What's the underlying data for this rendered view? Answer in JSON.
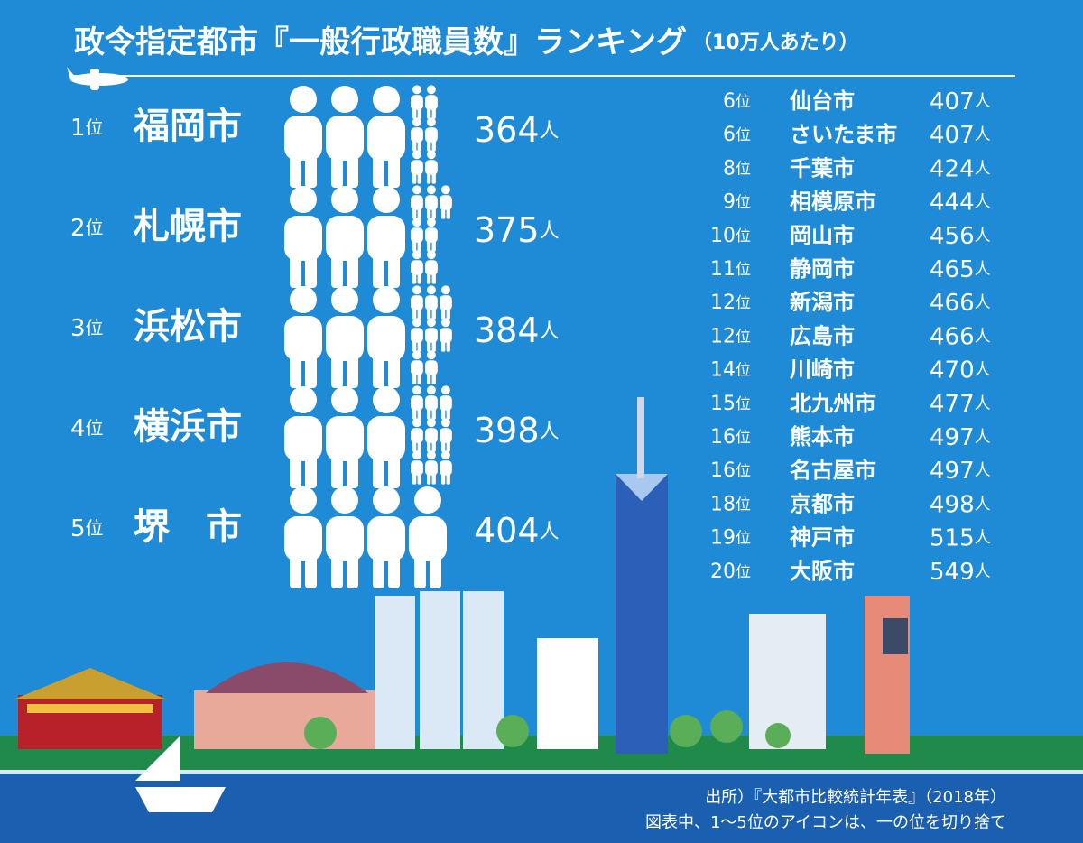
{
  "header": {
    "title": "政令指定都市『一般行政職員数』ランキング",
    "subtitle": "（10万人あたり）"
  },
  "rank_unit": "位",
  "value_unit": "人",
  "top": [
    {
      "rank": 1,
      "city": "福岡市",
      "value": 364
    },
    {
      "rank": 2,
      "city": "札幌市",
      "value": 375
    },
    {
      "rank": 3,
      "city": "浜松市",
      "value": 384
    },
    {
      "rank": 4,
      "city": "横浜市",
      "value": 398
    },
    {
      "rank": 5,
      "city": "堺　市",
      "value": 404
    }
  ],
  "others": [
    {
      "rank": 6,
      "city": "仙台市",
      "value": 407
    },
    {
      "rank": 6,
      "city": "さいたま市",
      "value": 407
    },
    {
      "rank": 8,
      "city": "千葉市",
      "value": 424
    },
    {
      "rank": 9,
      "city": "相模原市",
      "value": 444
    },
    {
      "rank": 10,
      "city": "岡山市",
      "value": 456
    },
    {
      "rank": 11,
      "city": "静岡市",
      "value": 465
    },
    {
      "rank": 12,
      "city": "新潟市",
      "value": 466
    },
    {
      "rank": 12,
      "city": "広島市",
      "value": 466
    },
    {
      "rank": 14,
      "city": "川崎市",
      "value": 470
    },
    {
      "rank": 15,
      "city": "北九州市",
      "value": 477
    },
    {
      "rank": 16,
      "city": "熊本市",
      "value": 497
    },
    {
      "rank": 16,
      "city": "名古屋市",
      "value": 497
    },
    {
      "rank": 18,
      "city": "京都市",
      "value": 498
    },
    {
      "rank": 19,
      "city": "神戸市",
      "value": 515
    },
    {
      "rank": 20,
      "city": "大阪市",
      "value": 549
    }
  ],
  "source": "出所）『大都市比較統計年表』（2018年）",
  "note": "図表中、1～5位のアイコンは、一の位を切り捨て"
}
